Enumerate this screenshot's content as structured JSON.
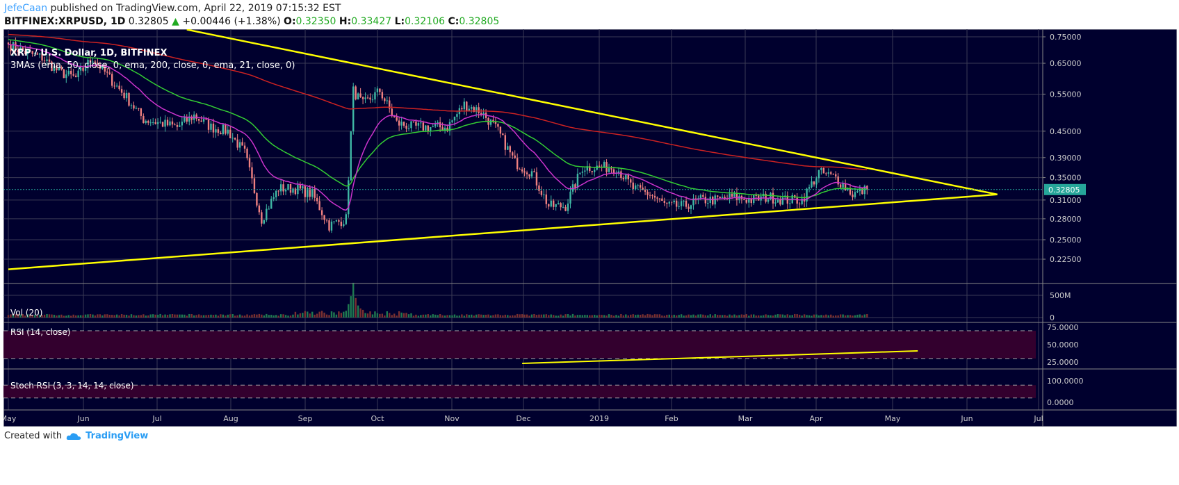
{
  "header": {
    "author": "JefeCaan",
    "published": "published on TradingView.com, April 22, 2019 07:15:32 EST",
    "symbol_line": "BITFINEX:XRPUSD, 1D",
    "last": "0.32805",
    "change": "+0.00446 (+1.38%)",
    "o_label": "O:",
    "o": "0.32350",
    "h_label": "H:",
    "h": "0.33427",
    "l_label": "L:",
    "l": "0.32106",
    "c_label": "C:",
    "c": "0.32805"
  },
  "footer": {
    "created_with": "Created with",
    "brand": "TradingView"
  },
  "chart_data": {
    "type": "candlestick",
    "title": "XRP / U.S. Dollar, 1D, BITFINEX",
    "indicator_label": "3MAs (ema, 50, close, 0, ema, 200, close, 0, ema, 21, close, 0)",
    "price_scale": "log",
    "price_ticks": [
      "0.75000",
      "0.65000",
      "0.55000",
      "0.45000",
      "0.39000",
      "0.35000",
      "0.31000",
      "0.28000",
      "0.25000",
      "0.22500"
    ],
    "last_price": "0.32805",
    "time_ticks": [
      "May",
      "Jun",
      "Jul",
      "Aug",
      "Sep",
      "Oct",
      "Nov",
      "Dec",
      "2019",
      "Feb",
      "Mar",
      "Apr",
      "May",
      "Jun",
      "Jul"
    ],
    "grid": true,
    "colors": {
      "background": "#00002e",
      "up": "#3fb8a5",
      "down": "#f08080",
      "ema50": "#33cc33",
      "ema200": "#cc2222",
      "ema21": "#cc33cc",
      "trendline": "#ffff00",
      "last_price": "#26a69a",
      "band": "#33002e",
      "rsi": "#ffffff",
      "stoch_k": "#2a8ff0",
      "stoch_d": "#ff7f27"
    },
    "closes": [
      [
        "2018-05-01",
        0.72
      ],
      [
        "2018-05-08",
        0.69
      ],
      [
        "2018-05-15",
        0.67
      ],
      [
        "2018-05-22",
        0.62
      ],
      [
        "2018-05-29",
        0.6
      ],
      [
        "2018-06-05",
        0.67
      ],
      [
        "2018-06-12",
        0.6
      ],
      [
        "2018-06-19",
        0.54
      ],
      [
        "2018-06-26",
        0.48
      ],
      [
        "2018-07-03",
        0.47
      ],
      [
        "2018-07-10",
        0.46
      ],
      [
        "2018-07-17",
        0.49
      ],
      [
        "2018-07-24",
        0.46
      ],
      [
        "2018-07-31",
        0.45
      ],
      [
        "2018-08-07",
        0.4
      ],
      [
        "2018-08-14",
        0.28
      ],
      [
        "2018-08-21",
        0.33
      ],
      [
        "2018-08-28",
        0.33
      ],
      [
        "2018-09-04",
        0.32
      ],
      [
        "2018-09-11",
        0.27
      ],
      [
        "2018-09-18",
        0.28
      ],
      [
        "2018-09-21",
        0.56
      ],
      [
        "2018-09-25",
        0.52
      ],
      [
        "2018-10-02",
        0.56
      ],
      [
        "2018-10-09",
        0.47
      ],
      [
        "2018-10-16",
        0.46
      ],
      [
        "2018-10-23",
        0.46
      ],
      [
        "2018-10-30",
        0.46
      ],
      [
        "2018-11-06",
        0.52
      ],
      [
        "2018-11-13",
        0.5
      ],
      [
        "2018-11-20",
        0.45
      ],
      [
        "2018-11-27",
        0.38
      ],
      [
        "2018-12-04",
        0.36
      ],
      [
        "2018-12-11",
        0.3
      ],
      [
        "2018-12-18",
        0.3
      ],
      [
        "2018-12-25",
        0.37
      ],
      [
        "2019-01-01",
        0.37
      ],
      [
        "2019-01-08",
        0.37
      ],
      [
        "2019-01-15",
        0.33
      ],
      [
        "2019-01-22",
        0.32
      ],
      [
        "2019-01-29",
        0.3
      ],
      [
        "2019-02-05",
        0.3
      ],
      [
        "2019-02-12",
        0.31
      ],
      [
        "2019-02-19",
        0.31
      ],
      [
        "2019-02-26",
        0.315
      ],
      [
        "2019-03-05",
        0.31
      ],
      [
        "2019-03-12",
        0.315
      ],
      [
        "2019-03-19",
        0.31
      ],
      [
        "2019-03-26",
        0.31
      ],
      [
        "2019-04-02",
        0.36
      ],
      [
        "2019-04-09",
        0.35
      ],
      [
        "2019-04-16",
        0.32
      ],
      [
        "2019-04-22",
        0.328
      ]
    ],
    "trendlines": [
      {
        "from": [
          "2018-07-14",
          0.78
        ],
        "to": [
          "2019-06-15",
          0.3195
        ]
      },
      {
        "from": [
          "2018-05-01",
          0.213
        ],
        "to": [
          "2019-06-15",
          0.3195
        ]
      }
    ],
    "volume": {
      "label": "Vol (20)",
      "ticks": [
        "500M",
        "0"
      ],
      "spike": [
        "2018-09-21",
        700
      ]
    },
    "rsi": {
      "label": "RSI (14, close)",
      "ticks": [
        "75.0000",
        "50.0000",
        "25.0000"
      ],
      "bands": [
        70,
        30
      ],
      "trendline": {
        "from": [
          "2018-11-30",
          23
        ],
        "to": [
          "2019-05-13",
          41
        ]
      }
    },
    "stoch_rsi": {
      "label": "Stoch RSI (3, 3, 14, 14, close)",
      "ticks": [
        "100.0000",
        "0.0000"
      ],
      "bands": [
        80,
        20
      ]
    }
  }
}
